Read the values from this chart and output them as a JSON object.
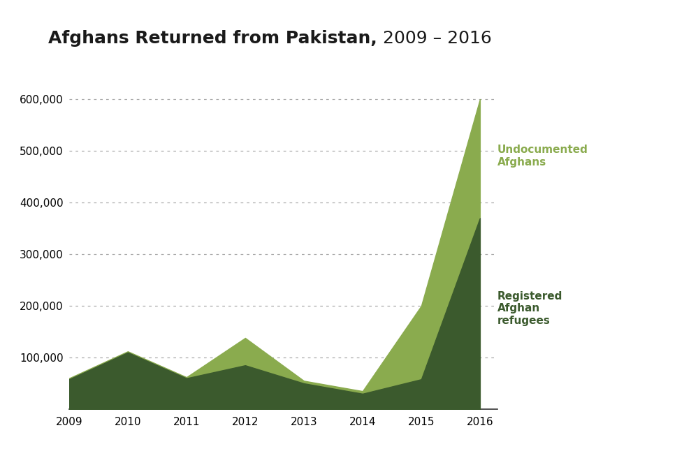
{
  "title_bold": "Afghans Returned from Pakistan,",
  "title_regular": " 2009 – 2016",
  "years": [
    2009,
    2010,
    2011,
    2012,
    2013,
    2014,
    2015,
    2016
  ],
  "registered": [
    58000,
    110000,
    60000,
    85000,
    50000,
    30000,
    58000,
    370000
  ],
  "undocumented": [
    60000,
    112000,
    62000,
    138000,
    55000,
    35000,
    200000,
    600000
  ],
  "registered_color": "#3b5a2d",
  "undocumented_color": "#8aab4e",
  "background_color": "#ffffff",
  "ylim": [
    0,
    630000
  ],
  "yticks": [
    100000,
    200000,
    300000,
    400000,
    500000,
    600000
  ],
  "label_registered": "Registered\nAfghan\nrefugees",
  "label_undocumented": "Undocumented\nAfghans",
  "label_registered_color": "#3b5a2d",
  "label_undocumented_color": "#8aab4e",
  "grid_color": "#aaaaaa",
  "title_fontsize": 18,
  "tick_fontsize": 11
}
